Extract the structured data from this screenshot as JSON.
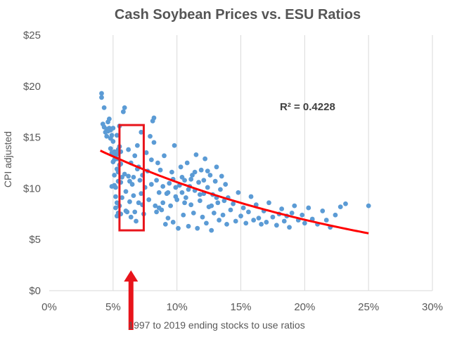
{
  "chart_data": {
    "type": "scatter",
    "title": "Cash Soybean Prices vs. ESU Ratios",
    "xlabel": "1997 to 2019 ending stocks to use ratios",
    "ylabel": "CPI adjusted",
    "xlim": [
      0,
      0.3
    ],
    "ylim": [
      0,
      25
    ],
    "x_ticks": [
      0,
      0.05,
      0.1,
      0.15,
      0.2,
      0.25,
      0.3
    ],
    "x_tick_labels": [
      "0%",
      "5%",
      "10%",
      "15%",
      "20%",
      "25%",
      "30%"
    ],
    "y_ticks": [
      0,
      5,
      10,
      15,
      20,
      25
    ],
    "y_tick_labels": [
      "$0",
      "$5",
      "$10",
      "$15",
      "$20",
      "$25"
    ],
    "grid": "vertical",
    "annotation": "R² = 0.4228",
    "colors": {
      "points": "#5b9bd5",
      "trendline": "#ff0000",
      "highlight": "#e8141b",
      "title": "#555555"
    },
    "trendline": {
      "type": "exponential",
      "x_range": [
        0.04,
        0.25
      ],
      "a": 16.24,
      "b": -4.25
    },
    "highlight_box": {
      "x_range": [
        0.055,
        0.074
      ],
      "y_range": [
        5.9,
        16.2
      ]
    },
    "arrow": {
      "x": 0.064,
      "y_from": 0,
      "y_to": 3.5
    },
    "points": [
      [
        0.041,
        19.3
      ],
      [
        0.041,
        18.9
      ],
      [
        0.042,
        16.3
      ],
      [
        0.043,
        17.9
      ],
      [
        0.043,
        16.0
      ],
      [
        0.044,
        15.5
      ],
      [
        0.045,
        15.8
      ],
      [
        0.045,
        15.1
      ],
      [
        0.046,
        15.6
      ],
      [
        0.046,
        16.5
      ],
      [
        0.047,
        16.8
      ],
      [
        0.047,
        15.9
      ],
      [
        0.048,
        14.9
      ],
      [
        0.048,
        15.7
      ],
      [
        0.049,
        15.2
      ],
      [
        0.05,
        14.6
      ],
      [
        0.05,
        15.9
      ],
      [
        0.051,
        13.6
      ],
      [
        0.051,
        11.3
      ],
      [
        0.052,
        13.2
      ],
      [
        0.052,
        10.1
      ],
      [
        0.053,
        12.9
      ],
      [
        0.053,
        15.2
      ],
      [
        0.054,
        13.8
      ],
      [
        0.054,
        11.6
      ],
      [
        0.055,
        16.1
      ],
      [
        0.055,
        14.1
      ],
      [
        0.056,
        13.6
      ],
      [
        0.056,
        12.4
      ],
      [
        0.057,
        11.1
      ],
      [
        0.048,
        13.9
      ],
      [
        0.049,
        13.5
      ],
      [
        0.05,
        12.6
      ],
      [
        0.051,
        10.3
      ],
      [
        0.052,
        9.2
      ],
      [
        0.053,
        8.6
      ],
      [
        0.054,
        10.7
      ],
      [
        0.055,
        12.3
      ],
      [
        0.056,
        10.6
      ],
      [
        0.057,
        9.1
      ],
      [
        0.05,
        13.4
      ],
      [
        0.051,
        12.8
      ],
      [
        0.053,
        11.9
      ],
      [
        0.054,
        13.4
      ],
      [
        0.052,
        8.1
      ],
      [
        0.053,
        7.3
      ],
      [
        0.054,
        7.6
      ],
      [
        0.055,
        8.3
      ],
      [
        0.049,
        10.2
      ],
      [
        0.056,
        7.5
      ],
      [
        0.058,
        17.5
      ],
      [
        0.059,
        17.9
      ],
      [
        0.059,
        11.4
      ],
      [
        0.06,
        9.7
      ],
      [
        0.06,
        7.8
      ],
      [
        0.061,
        7.7
      ],
      [
        0.062,
        13.8
      ],
      [
        0.062,
        11.2
      ],
      [
        0.063,
        10.7
      ],
      [
        0.063,
        8.7
      ],
      [
        0.064,
        7.2
      ],
      [
        0.064,
        12.5
      ],
      [
        0.065,
        10.4
      ],
      [
        0.066,
        9.3
      ],
      [
        0.066,
        11.1
      ],
      [
        0.067,
        13.2
      ],
      [
        0.067,
        7.7
      ],
      [
        0.068,
        6.8
      ],
      [
        0.069,
        11.9
      ],
      [
        0.069,
        14.2
      ],
      [
        0.07,
        8.6
      ],
      [
        0.07,
        12.1
      ],
      [
        0.071,
        10.8
      ],
      [
        0.072,
        9.5
      ],
      [
        0.072,
        15.5
      ],
      [
        0.073,
        8.4
      ],
      [
        0.073,
        11.3
      ],
      [
        0.074,
        7.5
      ],
      [
        0.075,
        10.1
      ],
      [
        0.076,
        13.5
      ],
      [
        0.077,
        11.7
      ],
      [
        0.078,
        8.9
      ],
      [
        0.079,
        15.1
      ],
      [
        0.08,
        10.4
      ],
      [
        0.08,
        12.8
      ],
      [
        0.081,
        16.6
      ],
      [
        0.082,
        14.5
      ],
      [
        0.082,
        16.9
      ],
      [
        0.083,
        8.3
      ],
      [
        0.084,
        10.8
      ],
      [
        0.085,
        12.5
      ],
      [
        0.086,
        9.6
      ],
      [
        0.087,
        11.8
      ],
      [
        0.088,
        7.9
      ],
      [
        0.089,
        10.2
      ],
      [
        0.09,
        13.2
      ],
      [
        0.091,
        6.5
      ],
      [
        0.092,
        9.5
      ],
      [
        0.093,
        7.1
      ],
      [
        0.094,
        10.5
      ],
      [
        0.095,
        8.3
      ],
      [
        0.096,
        11.6
      ],
      [
        0.097,
        6.7
      ],
      [
        0.098,
        14.2
      ],
      [
        0.099,
        10.1
      ],
      [
        0.1,
        8.9
      ],
      [
        0.101,
        6.1
      ],
      [
        0.102,
        10.3
      ],
      [
        0.103,
        12.1
      ],
      [
        0.104,
        9.6
      ],
      [
        0.105,
        7.4
      ],
      [
        0.106,
        10.8
      ],
      [
        0.107,
        9.1
      ],
      [
        0.108,
        12.5
      ],
      [
        0.109,
        6.3
      ],
      [
        0.11,
        10.2
      ],
      [
        0.111,
        8.4
      ],
      [
        0.112,
        11.3
      ],
      [
        0.113,
        7.6
      ],
      [
        0.114,
        9.8
      ],
      [
        0.115,
        13.3
      ],
      [
        0.116,
        6.1
      ],
      [
        0.117,
        10.6
      ],
      [
        0.118,
        8.8
      ],
      [
        0.119,
        11.8
      ],
      [
        0.12,
        7.2
      ],
      [
        0.121,
        9.5
      ],
      [
        0.122,
        12.9
      ],
      [
        0.123,
        6.6
      ],
      [
        0.124,
        10.1
      ],
      [
        0.125,
        8.2
      ],
      [
        0.126,
        11.3
      ],
      [
        0.127,
        5.9
      ],
      [
        0.128,
        9.4
      ],
      [
        0.129,
        7.6
      ],
      [
        0.13,
        10.7
      ],
      [
        0.131,
        12.1
      ],
      [
        0.132,
        8.6
      ],
      [
        0.133,
        6.9
      ],
      [
        0.134,
        9.9
      ],
      [
        0.135,
        11.2
      ],
      [
        0.136,
        7.4
      ],
      [
        0.137,
        8.8
      ],
      [
        0.138,
        10.4
      ],
      [
        0.139,
        6.5
      ],
      [
        0.14,
        9.1
      ],
      [
        0.142,
        7.9
      ],
      [
        0.144,
        8.5
      ],
      [
        0.146,
        6.8
      ],
      [
        0.148,
        9.6
      ],
      [
        0.15,
        7.3
      ],
      [
        0.152,
        8.1
      ],
      [
        0.154,
        6.6
      ],
      [
        0.156,
        7.7
      ],
      [
        0.158,
        9.2
      ],
      [
        0.16,
        6.9
      ],
      [
        0.162,
        8.4
      ],
      [
        0.164,
        7.1
      ],
      [
        0.166,
        6.5
      ],
      [
        0.168,
        7.8
      ],
      [
        0.17,
        6.7
      ],
      [
        0.172,
        8.6
      ],
      [
        0.175,
        7.2
      ],
      [
        0.178,
        6.4
      ],
      [
        0.18,
        7.5
      ],
      [
        0.182,
        8.0
      ],
      [
        0.184,
        6.8
      ],
      [
        0.186,
        7.3
      ],
      [
        0.188,
        6.2
      ],
      [
        0.19,
        7.6
      ],
      [
        0.192,
        8.3
      ],
      [
        0.195,
        6.9
      ],
      [
        0.198,
        7.4
      ],
      [
        0.2,
        6.6
      ],
      [
        0.203,
        8.1
      ],
      [
        0.206,
        7.0
      ],
      [
        0.21,
        6.5
      ],
      [
        0.214,
        7.8
      ],
      [
        0.217,
        6.9
      ],
      [
        0.22,
        6.2
      ],
      [
        0.224,
        7.4
      ],
      [
        0.228,
        8.2
      ],
      [
        0.232,
        8.5
      ],
      [
        0.25,
        8.3
      ],
      [
        0.097,
        10.9
      ],
      [
        0.099,
        9.2
      ],
      [
        0.104,
        11.1
      ],
      [
        0.106,
        8.6
      ],
      [
        0.109,
        9.9
      ],
      [
        0.111,
        10.9
      ],
      [
        0.114,
        11.6
      ],
      [
        0.118,
        9.4
      ],
      [
        0.121,
        10.8
      ],
      [
        0.124,
        11.7
      ],
      [
        0.127,
        8.3
      ],
      [
        0.131,
        9.1
      ],
      [
        0.093,
        9.6
      ],
      [
        0.089,
        8.6
      ],
      [
        0.086,
        8.1
      ],
      [
        0.084,
        7.7
      ]
    ]
  }
}
